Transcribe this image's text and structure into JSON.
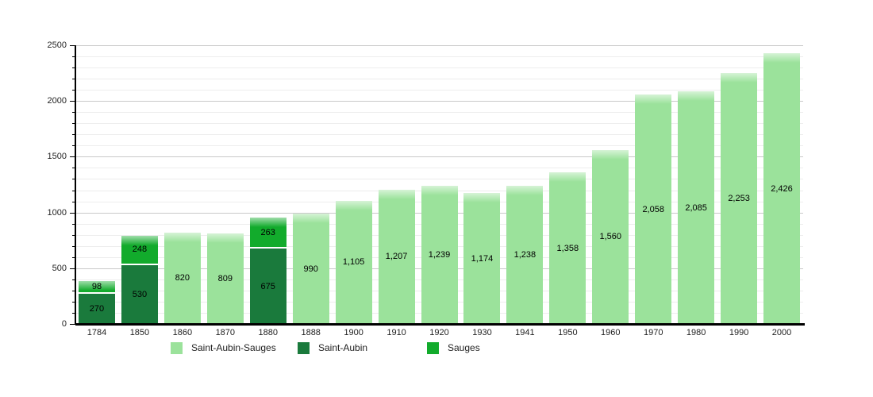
{
  "chart_data": {
    "type": "stacked-bar",
    "title": "",
    "xlabel": "",
    "ylabel": "",
    "ylim": [
      0,
      2500
    ],
    "y_major_step": 500,
    "y_minor_step": 100,
    "grid": true,
    "legend_position": "bottom",
    "y_tick_labels": [
      "0",
      "500",
      "1000",
      "1500",
      "2000",
      "2500"
    ],
    "categories": [
      "1784",
      "1850",
      "1860",
      "1870",
      "1880",
      "1888",
      "1900",
      "1910",
      "1920",
      "1930",
      "1941",
      "1950",
      "1960",
      "1970",
      "1980",
      "1990",
      "2000"
    ],
    "series": [
      {
        "name": "Saint-Aubin-Sauges",
        "color_key": "light",
        "values": [
          null,
          null,
          820,
          809,
          null,
          990,
          1105,
          1207,
          1239,
          1174,
          1238,
          1358,
          1560,
          2058,
          2085,
          2253,
          2426
        ]
      },
      {
        "name": "Saint-Aubin",
        "color_key": "dark",
        "values": [
          270,
          530,
          null,
          null,
          675,
          null,
          null,
          null,
          null,
          null,
          null,
          null,
          null,
          null,
          null,
          null,
          null
        ]
      },
      {
        "name": "Sauges",
        "color_key": "bright",
        "values": [
          98,
          248,
          null,
          null,
          263,
          null,
          null,
          null,
          null,
          null,
          null,
          null,
          null,
          null,
          null,
          null,
          null
        ]
      }
    ],
    "bars": [
      {
        "year": "1784",
        "segments": [
          {
            "name": "Saint-Aubin",
            "value": 270,
            "label": "270"
          },
          {
            "name": "Sauges",
            "value": 98,
            "label": "98"
          }
        ]
      },
      {
        "year": "1850",
        "segments": [
          {
            "name": "Saint-Aubin",
            "value": 530,
            "label": "530"
          },
          {
            "name": "Sauges",
            "value": 248,
            "label": "248"
          }
        ]
      },
      {
        "year": "1860",
        "segments": [
          {
            "name": "Saint-Aubin-Sauges",
            "value": 820,
            "label": "820"
          }
        ]
      },
      {
        "year": "1870",
        "segments": [
          {
            "name": "Saint-Aubin-Sauges",
            "value": 809,
            "label": "809"
          }
        ]
      },
      {
        "year": "1880",
        "segments": [
          {
            "name": "Saint-Aubin",
            "value": 675,
            "label": "675"
          },
          {
            "name": "Sauges",
            "value": 263,
            "label": "263"
          }
        ]
      },
      {
        "year": "1888",
        "segments": [
          {
            "name": "Saint-Aubin-Sauges",
            "value": 990,
            "label": "990"
          }
        ]
      },
      {
        "year": "1900",
        "segments": [
          {
            "name": "Saint-Aubin-Sauges",
            "value": 1105,
            "label": "1,105"
          }
        ]
      },
      {
        "year": "1910",
        "segments": [
          {
            "name": "Saint-Aubin-Sauges",
            "value": 1207,
            "label": "1,207"
          }
        ]
      },
      {
        "year": "1920",
        "segments": [
          {
            "name": "Saint-Aubin-Sauges",
            "value": 1239,
            "label": "1,239"
          }
        ]
      },
      {
        "year": "1930",
        "segments": [
          {
            "name": "Saint-Aubin-Sauges",
            "value": 1174,
            "label": "1,174"
          }
        ]
      },
      {
        "year": "1941",
        "segments": [
          {
            "name": "Saint-Aubin-Sauges",
            "value": 1238,
            "label": "1,238"
          }
        ]
      },
      {
        "year": "1950",
        "segments": [
          {
            "name": "Saint-Aubin-Sauges",
            "value": 1358,
            "label": "1,358"
          }
        ]
      },
      {
        "year": "1960",
        "segments": [
          {
            "name": "Saint-Aubin-Sauges",
            "value": 1560,
            "label": "1,560"
          }
        ]
      },
      {
        "year": "1970",
        "segments": [
          {
            "name": "Saint-Aubin-Sauges",
            "value": 2058,
            "label": "2,058"
          }
        ]
      },
      {
        "year": "1980",
        "segments": [
          {
            "name": "Saint-Aubin-Sauges",
            "value": 2085,
            "label": "2,085"
          }
        ]
      },
      {
        "year": "1990",
        "segments": [
          {
            "name": "Saint-Aubin-Sauges",
            "value": 2253,
            "label": "2,253"
          }
        ]
      },
      {
        "year": "2000",
        "segments": [
          {
            "name": "Saint-Aubin-Sauges",
            "value": 2426,
            "label": "2,426"
          }
        ]
      }
    ],
    "legend": [
      {
        "label": "Saint-Aubin-Sauges",
        "color_key": "light"
      },
      {
        "label": "Saint-Aubin",
        "color_key": "dark"
      },
      {
        "label": "Sauges",
        "color_key": "bright"
      }
    ]
  },
  "colors": {
    "light": "#9be29b",
    "dark": "#1a7a3c",
    "bright": "#12ab2c",
    "grid_minor": "#ededed",
    "grid_major": "#c9c9c9",
    "axis": "#000000",
    "bar_label_text": "#000000",
    "tick_text": "#222222",
    "background": "#ffffff"
  }
}
